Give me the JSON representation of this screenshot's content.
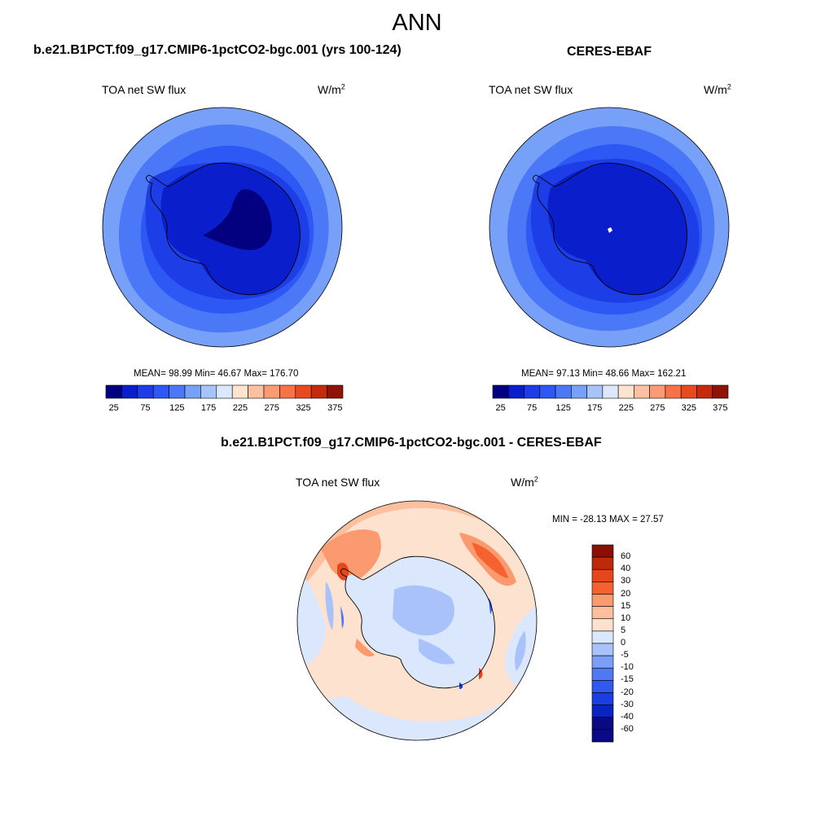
{
  "main_title": "ANN",
  "colors": {
    "abs_palette": [
      "#03017f",
      "#0a1fcb",
      "#1d3de6",
      "#2e58f3",
      "#4a78f6",
      "#77a0f8",
      "#a7c4fa",
      "#dce9fd",
      "#fee4cf",
      "#fdc1a1",
      "#fb9b74",
      "#f77347",
      "#e84a1f",
      "#c52a0c",
      "#8f1407"
    ],
    "diff_palette": [
      "#0a0a85",
      "#0a23c2",
      "#1a3ee3",
      "#2f59f0",
      "#4f79f5",
      "#7a9ff8",
      "#a9c3fa",
      "#dbe7fd",
      "#fde2d0",
      "#fdc09f",
      "#fb9a6f",
      "#f6622f",
      "#e5461c",
      "#bd2a0a",
      "#8c0e05"
    ],
    "coast": "#000000"
  },
  "panel_left": {
    "title": "b.e21.B1PCT.f09_g17.CMIP6-1pctCO2-bgc.001 (yrs 100-124)",
    "field": "TOA net SW flux",
    "units_base": "W/m",
    "units_exp": "2",
    "stats": "MEAN=  98.99  Min=  46.67  Max= 176.70"
  },
  "panel_right": {
    "title": "CERES-EBAF",
    "field": "TOA net SW flux",
    "units_base": "W/m",
    "units_exp": "2",
    "stats": "MEAN=  97.13  Min=  48.66  Max= 162.21"
  },
  "panel_diff": {
    "title": "b.e21.B1PCT.f09_g17.CMIP6-1pctCO2-bgc.001 - CERES-EBAF",
    "field": "TOA net SW flux",
    "units_base": "W/m",
    "units_exp": "2",
    "stats": "MIN = -28.13 MAX =  27.57"
  },
  "abs_colorbar_ticks": [
    "25",
    "75",
    "125",
    "175",
    "225",
    "275",
    "325",
    "375"
  ],
  "diff_colorbar_ticks": [
    "60",
    "40",
    "30",
    "20",
    "15",
    "10",
    "5",
    "0",
    "-5",
    "-10",
    "-15",
    "-20",
    "-30",
    "-40",
    "-60"
  ]
}
